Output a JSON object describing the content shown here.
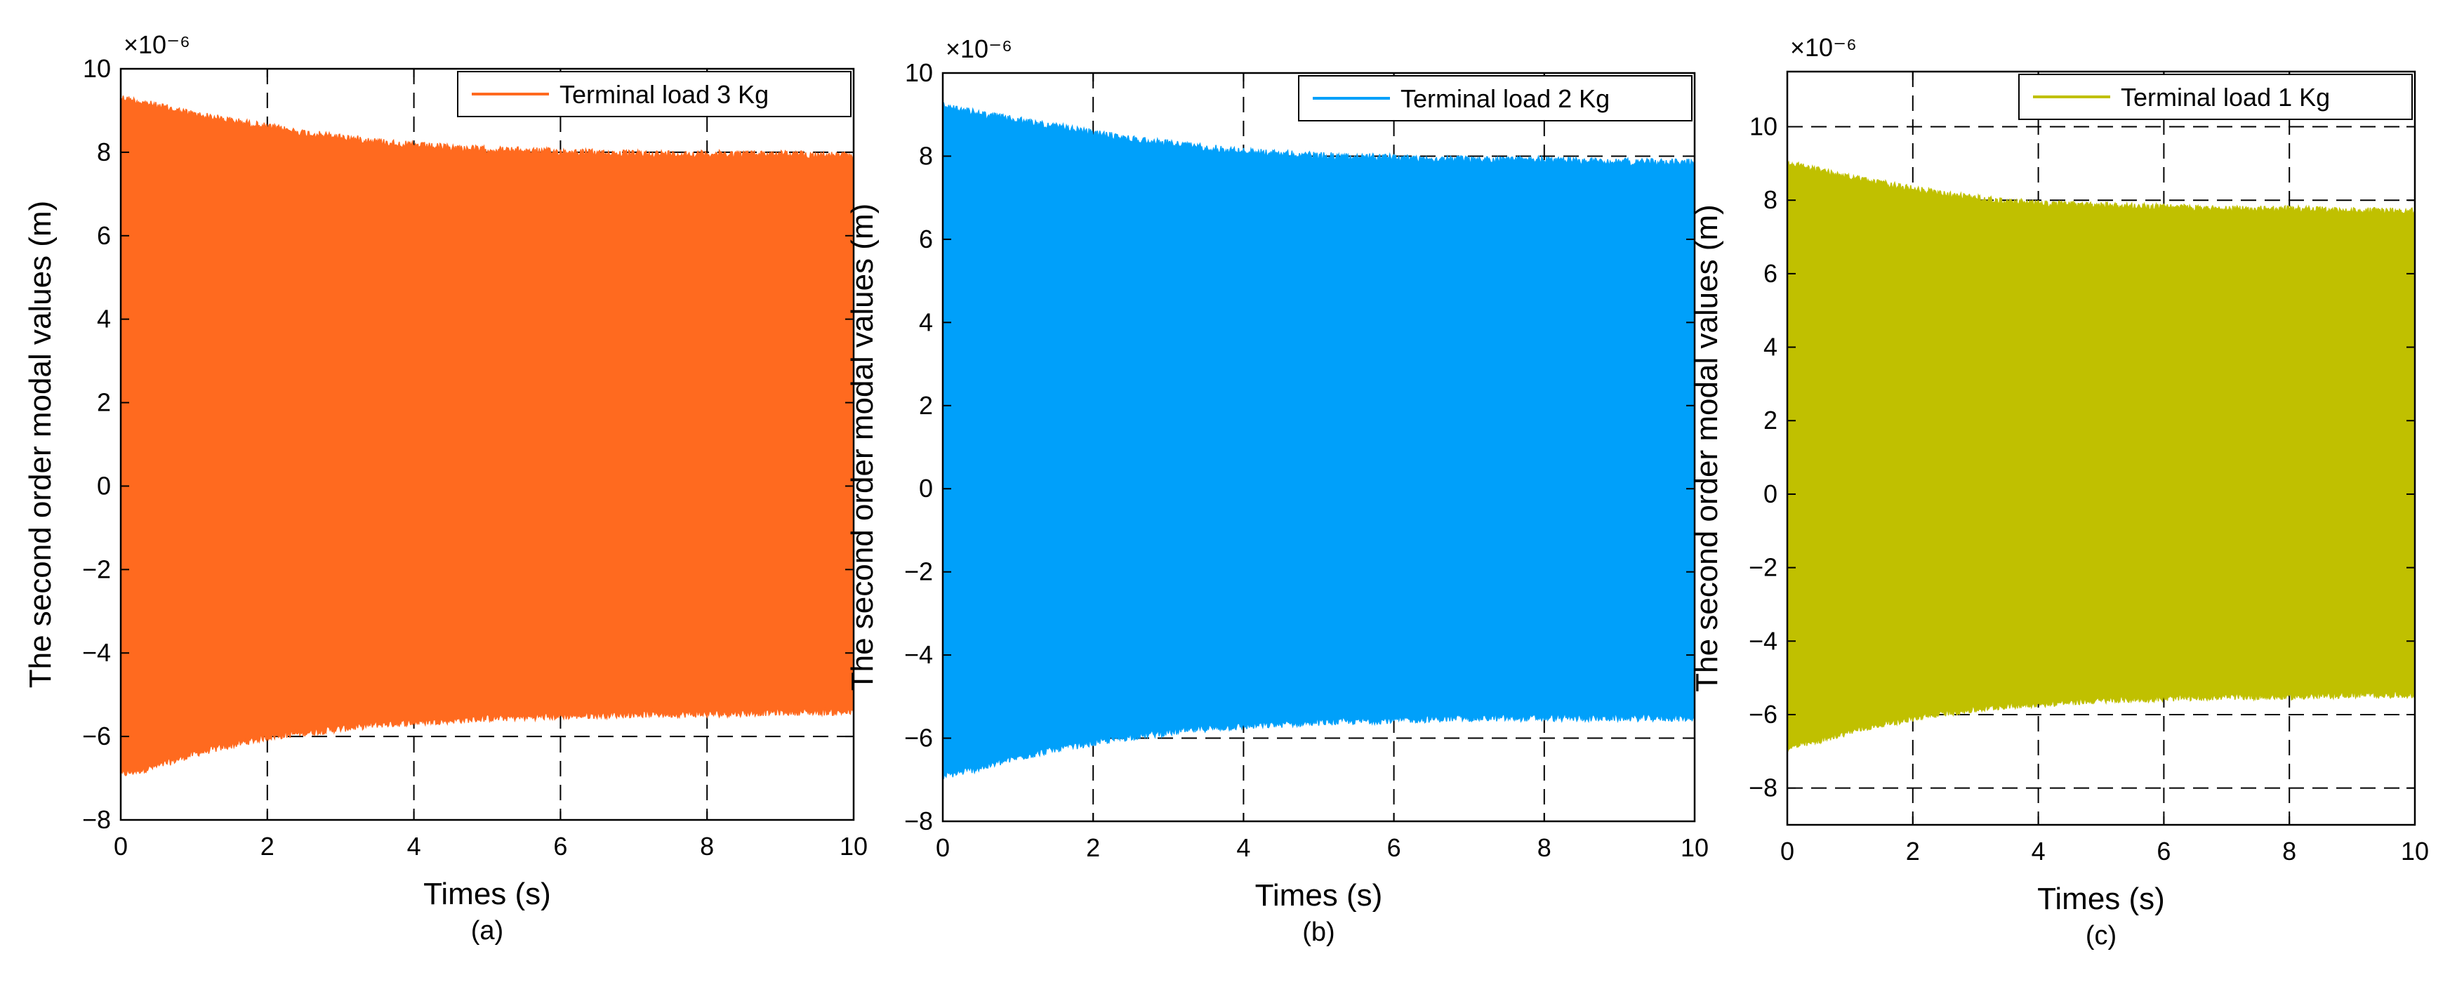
{
  "figure": {
    "description_caption": [
      "(a)",
      "(b)",
      "(c)"
    ]
  },
  "chart_data": [
    {
      "type": "area",
      "panel_label": "(a)",
      "title": "",
      "xlabel": "Times (s)",
      "ylabel": "The second order modal values (m)",
      "exponent_label": "×10⁻⁶",
      "xlim": [
        0,
        10
      ],
      "ylim": [
        -8,
        10
      ],
      "xticks": [
        "0",
        "2",
        "4",
        "6",
        "8",
        "10"
      ],
      "yticks": [
        "−8",
        "−6",
        "−4",
        "−2",
        "0",
        "2",
        "4",
        "6",
        "8",
        "10"
      ],
      "grid": "dashed",
      "legend": "top-right",
      "series": [
        {
          "name": "Terminal load   3 Kg",
          "color": "#FF6A1F",
          "x": [
            0,
            0.5,
            1,
            1.5,
            2,
            2.5,
            3,
            3.5,
            4,
            5,
            6,
            7,
            8,
            9,
            10
          ],
          "upper_envelope": [
            9.4,
            9.2,
            9.0,
            8.85,
            8.7,
            8.55,
            8.45,
            8.35,
            8.25,
            8.15,
            8.1,
            8.05,
            8.05,
            8.05,
            8.0
          ],
          "lower_envelope": [
            -7.0,
            -6.8,
            -6.5,
            -6.3,
            -6.1,
            -6.0,
            -5.9,
            -5.8,
            -5.75,
            -5.65,
            -5.6,
            -5.55,
            -5.55,
            -5.5,
            -5.5
          ]
        }
      ]
    },
    {
      "type": "area",
      "panel_label": "(b)",
      "title": "",
      "xlabel": "Times (s)",
      "ylabel": "The second order modal values (m)",
      "exponent_label": "×10⁻⁶",
      "xlim": [
        0,
        10
      ],
      "ylim": [
        -8,
        10
      ],
      "xticks": [
        "0",
        "2",
        "4",
        "6",
        "8",
        "10"
      ],
      "yticks": [
        "−8",
        "−6",
        "−4",
        "−2",
        "0",
        "2",
        "4",
        "6",
        "8",
        "10"
      ],
      "grid": "dashed",
      "legend": "top-right",
      "series": [
        {
          "name": "Terminal load   2 Kg",
          "color": "#00A0FA",
          "x": [
            0,
            0.5,
            1,
            1.5,
            2,
            2.5,
            3,
            3.5,
            4,
            5,
            6,
            7,
            8,
            9,
            10
          ],
          "upper_envelope": [
            9.3,
            9.1,
            8.95,
            8.8,
            8.65,
            8.5,
            8.4,
            8.3,
            8.2,
            8.1,
            8.05,
            8.0,
            8.0,
            7.95,
            7.95
          ],
          "lower_envelope": [
            -7.0,
            -6.8,
            -6.55,
            -6.35,
            -6.2,
            -6.05,
            -5.95,
            -5.85,
            -5.8,
            -5.7,
            -5.65,
            -5.6,
            -5.6,
            -5.6,
            -5.6
          ]
        }
      ]
    },
    {
      "type": "area",
      "panel_label": "(c)",
      "title": "",
      "xlabel": "Times (s)",
      "ylabel": "The second order modal values (m)",
      "exponent_label": "×10⁻⁶",
      "xlim": [
        0,
        10
      ],
      "ylim": [
        -9,
        11.5
      ],
      "xticks": [
        "0",
        "2",
        "4",
        "6",
        "8",
        "10"
      ],
      "yticks": [
        "−8",
        "−6",
        "−4",
        "−2",
        "0",
        "2",
        "4",
        "6",
        "8",
        "10"
      ],
      "grid": "dashed",
      "legend": "top-right",
      "series": [
        {
          "name": "Terminal load   1 Kg",
          "color": "#C0C000",
          "x": [
            0,
            0.5,
            1,
            1.5,
            2,
            2.5,
            3,
            3.5,
            4,
            5,
            6,
            7,
            8,
            9,
            10
          ],
          "upper_envelope": [
            9.1,
            8.9,
            8.7,
            8.55,
            8.4,
            8.25,
            8.15,
            8.05,
            8.0,
            7.95,
            7.9,
            7.85,
            7.85,
            7.8,
            7.8
          ],
          "lower_envelope": [
            -7.0,
            -6.8,
            -6.55,
            -6.35,
            -6.2,
            -6.05,
            -5.95,
            -5.85,
            -5.8,
            -5.7,
            -5.65,
            -5.6,
            -5.6,
            -5.55,
            -5.55
          ]
        }
      ]
    }
  ]
}
